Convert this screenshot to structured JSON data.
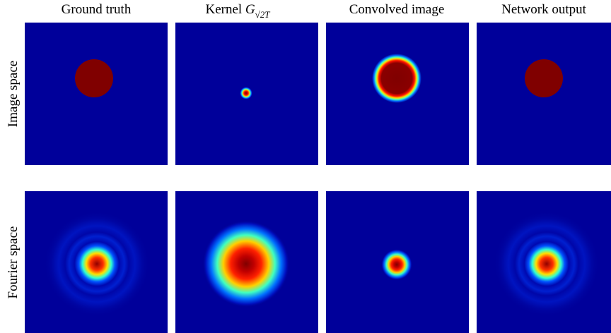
{
  "columns": [
    "Ground truth",
    {
      "text": "Kernel",
      "symbol": "G",
      "subscript": "√2T"
    },
    "Convolved image",
    "Network output"
  ],
  "rows": [
    "Image space",
    "Fourier space"
  ]
}
